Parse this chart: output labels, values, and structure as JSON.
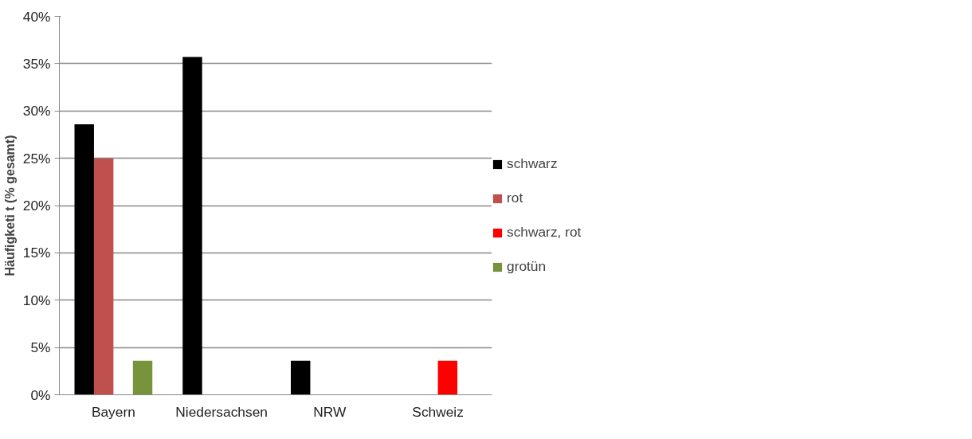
{
  "chart_data": {
    "type": "bar",
    "ylabel": "Häufigketi t (% gesamt)",
    "categories": [
      "Bayern",
      "Niedersachsen",
      "NRW",
      "Schweiz"
    ],
    "series": [
      {
        "name": "schwarz",
        "color": "#000000",
        "values": [
          28.6,
          35.7,
          3.6,
          null
        ]
      },
      {
        "name": "rot",
        "color": "#c0504d",
        "values": [
          25,
          null,
          null,
          null
        ]
      },
      {
        "name": "schwarz, rot",
        "color": "#ff0000",
        "values": [
          null,
          null,
          null,
          3.6
        ]
      },
      {
        "name": "grotün",
        "color": "#77933c",
        "values": [
          3.6,
          null,
          null,
          null
        ]
      }
    ],
    "ylim": [
      0,
      40
    ],
    "yticks": [
      {
        "value": 0,
        "label": "0%"
      },
      {
        "value": 5,
        "label": "5%"
      },
      {
        "value": 10,
        "label": "10%"
      },
      {
        "value": 15,
        "label": "15%"
      },
      {
        "value": 20,
        "label": "20%"
      },
      {
        "value": 25,
        "label": "25%"
      },
      {
        "value": 30,
        "label": "30%"
      },
      {
        "value": 35,
        "label": "35%"
      },
      {
        "value": 40,
        "label": "40%"
      }
    ],
    "grid": "y",
    "legend": "right"
  }
}
